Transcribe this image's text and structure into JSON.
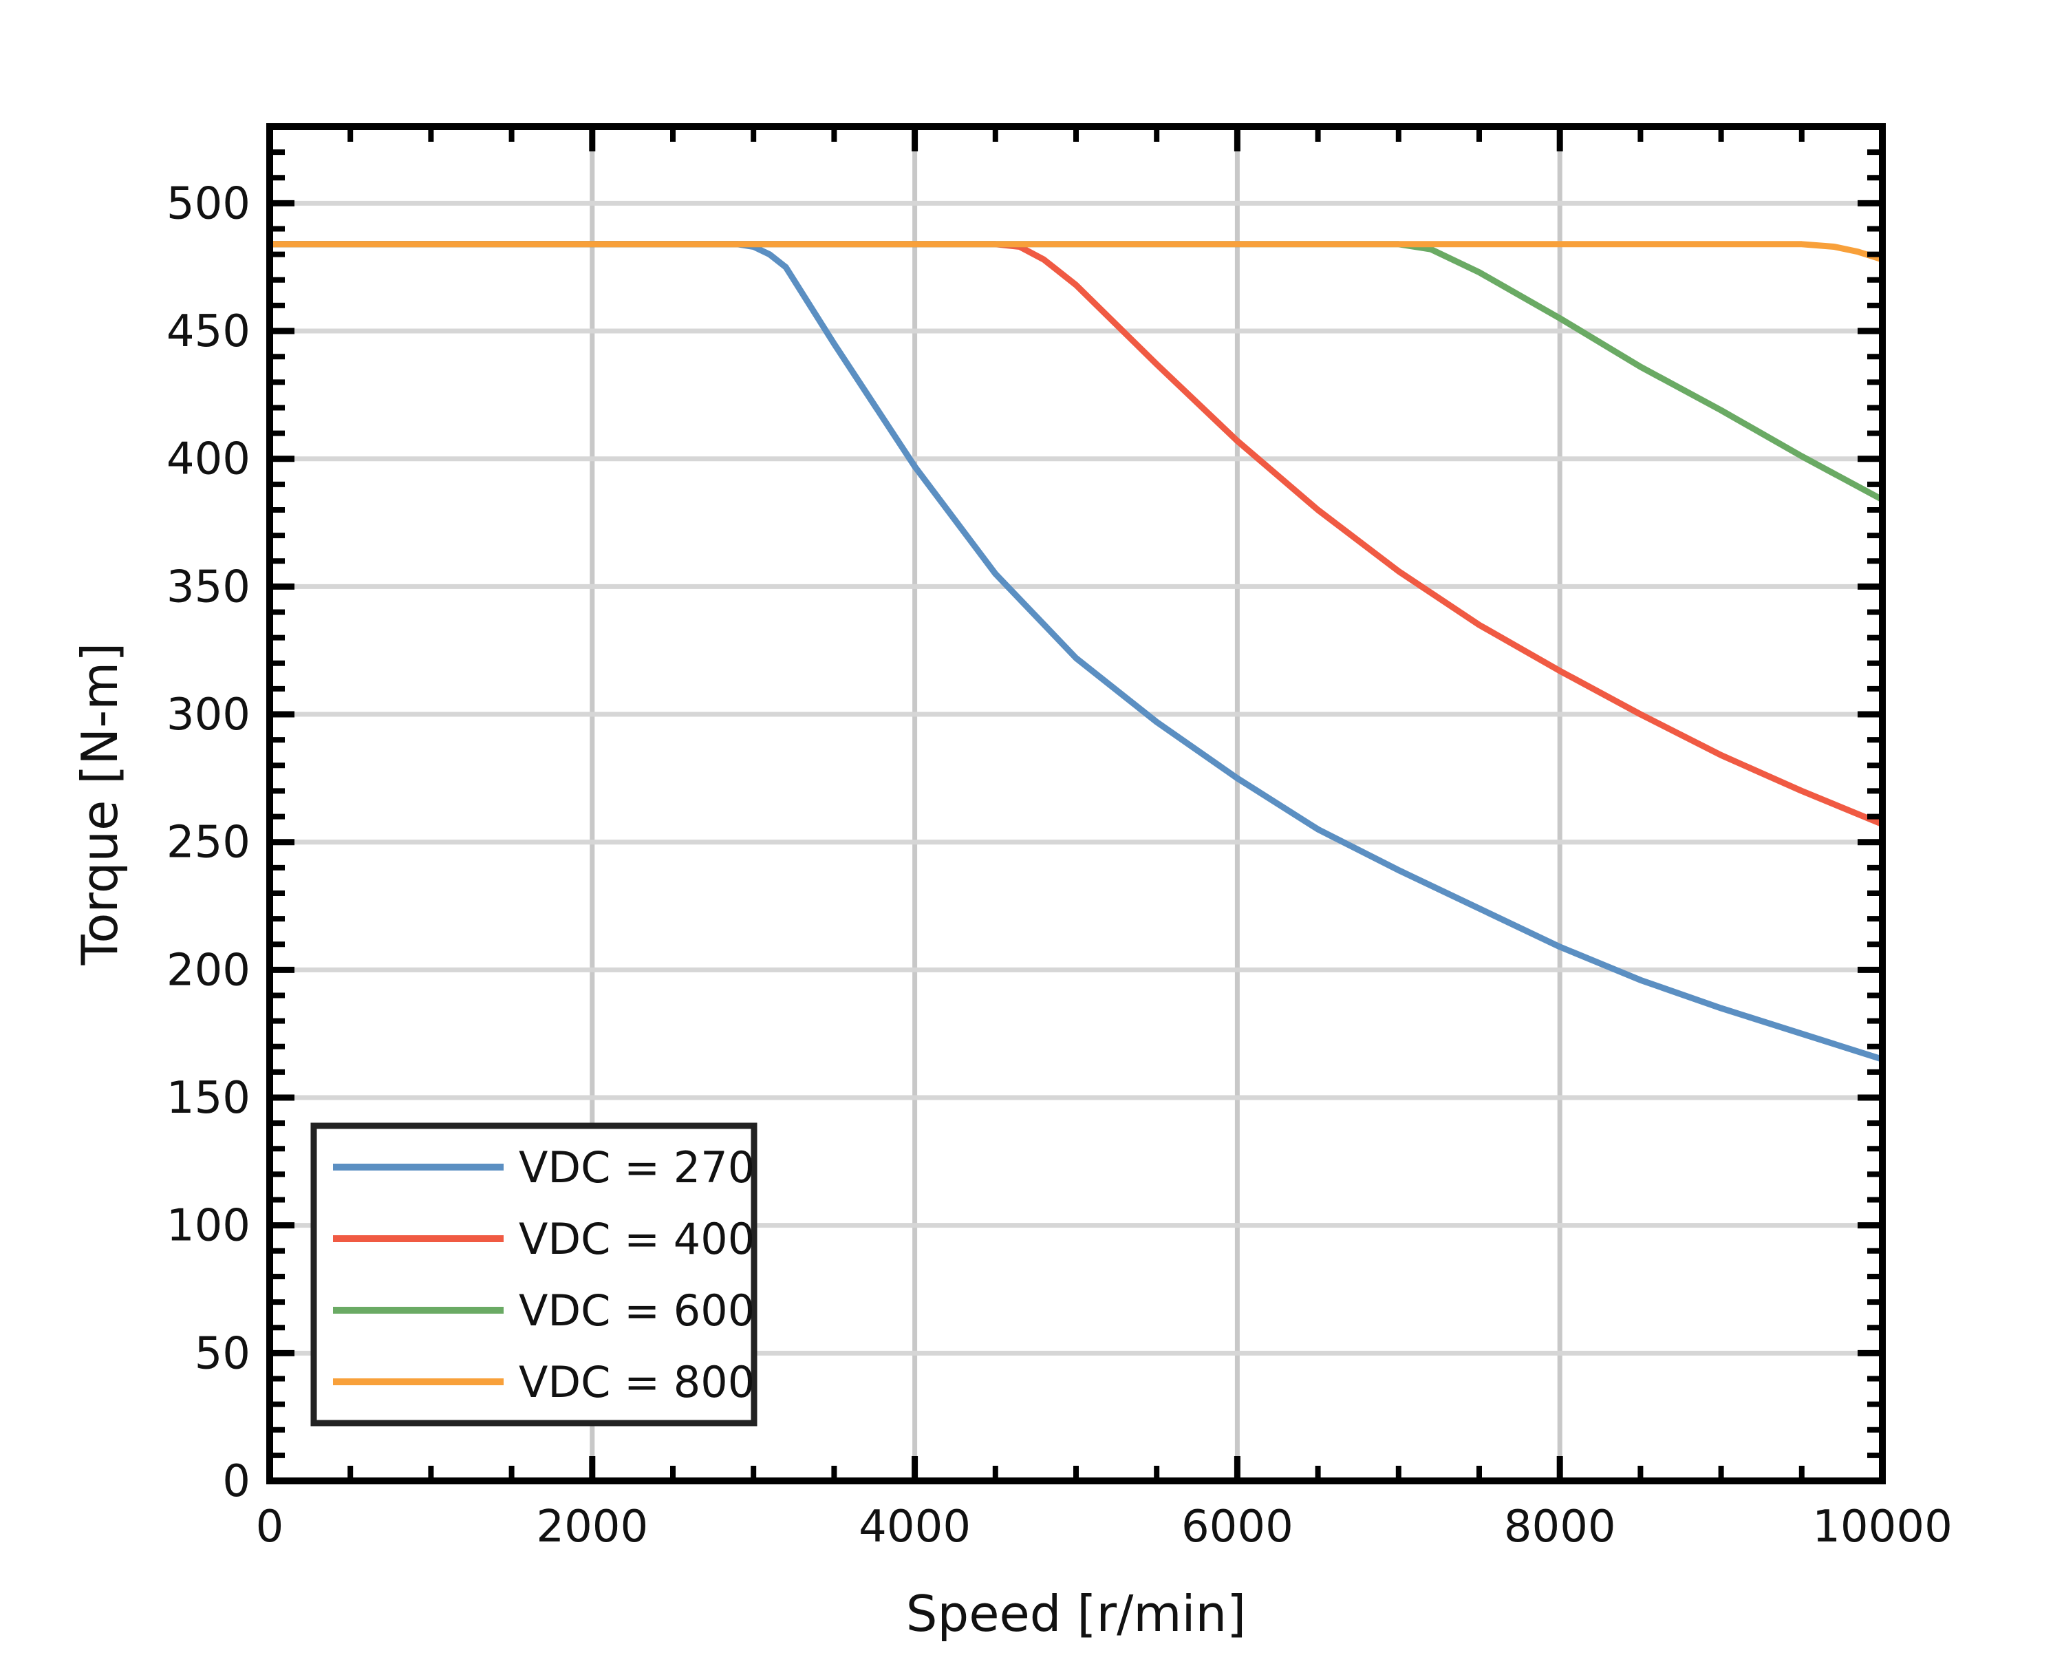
{
  "chart_data": {
    "type": "line",
    "title": "",
    "xlabel": "Speed [r/min]",
    "ylabel": "Torque [N-m]",
    "xlim": [
      0,
      10000
    ],
    "ylim": [
      0,
      530
    ],
    "xticks": [
      0,
      2000,
      4000,
      6000,
      8000,
      10000
    ],
    "yticks": [
      0,
      50,
      100,
      150,
      200,
      250,
      300,
      350,
      400,
      450,
      500
    ],
    "xtick_labels": [
      "0",
      "2000",
      "4000",
      "6000",
      "8000",
      "10000"
    ],
    "ytick_labels": [
      "0",
      "50",
      "100",
      "150",
      "200",
      "250",
      "300",
      "350",
      "400",
      "450",
      "500"
    ],
    "grid": true,
    "legend_position": "bottom-left",
    "series": [
      {
        "name": "VDC = 270",
        "color": "#5b8fc2",
        "x": [
          0,
          2900,
          3000,
          3100,
          3200,
          3500,
          4000,
          4500,
          5000,
          5500,
          6000,
          6500,
          7000,
          7500,
          8000,
          8500,
          9000,
          9500,
          10000
        ],
        "y": [
          484,
          484,
          483,
          480,
          475,
          445,
          397,
          355,
          322,
          297,
          275,
          255,
          239,
          224,
          209,
          196,
          185,
          175,
          165
        ]
      },
      {
        "name": "VDC = 400",
        "color": "#f05a43",
        "x": [
          0,
          4500,
          4650,
          4800,
          5000,
          5500,
          6000,
          6500,
          7000,
          7500,
          8000,
          8500,
          9000,
          9500,
          10000
        ],
        "y": [
          484,
          484,
          483,
          478,
          468,
          437,
          407,
          380,
          356,
          335,
          317,
          300,
          284,
          270,
          257
        ]
      },
      {
        "name": "VDC = 600",
        "color": "#6aaa64",
        "x": [
          0,
          7000,
          7200,
          7500,
          8000,
          8500,
          9000,
          9500,
          10000
        ],
        "y": [
          484,
          484,
          482,
          473,
          455,
          436,
          419,
          401,
          384
        ]
      },
      {
        "name": "VDC = 800",
        "color": "#f8a03a",
        "x": [
          0,
          9500,
          9700,
          9850,
          10000
        ],
        "y": [
          484,
          484,
          483,
          481,
          478
        ]
      }
    ]
  }
}
